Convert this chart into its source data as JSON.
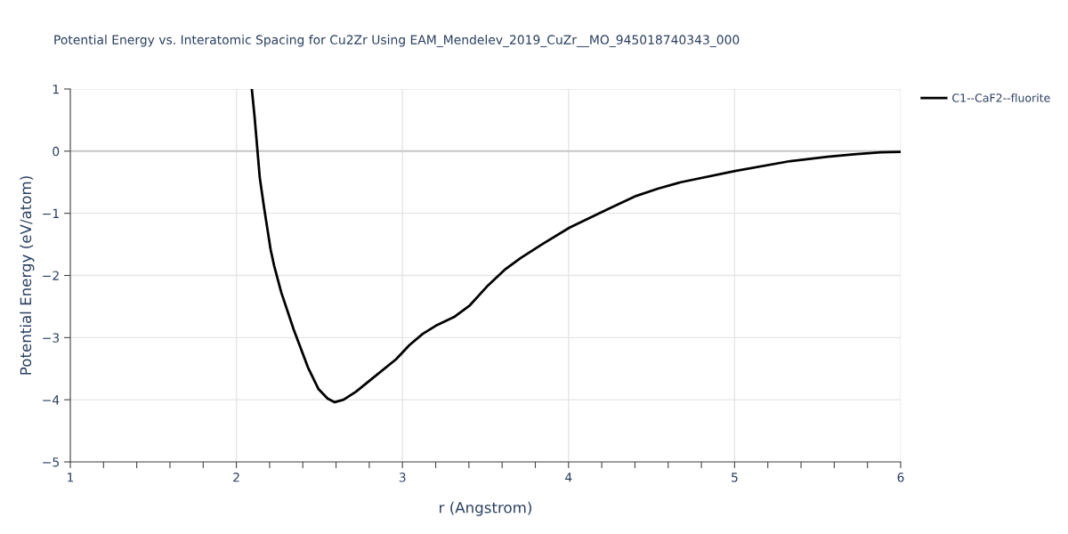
{
  "chart_data": {
    "type": "line",
    "title": "Potential Energy vs. Interatomic Spacing for Cu2Zr Using EAM_Mendelev_2019_CuZr__MO_945018740343_000",
    "xlabel": "r (Angstrom)",
    "ylabel": "Potential Energy (eV/atom)",
    "series": [
      {
        "name": "C1--CaF2--fluorite",
        "color": "#000000",
        "x": [
          2.093,
          2.109,
          2.141,
          2.168,
          2.206,
          2.227,
          2.27,
          2.345,
          2.431,
          2.495,
          2.549,
          2.592,
          2.645,
          2.72,
          2.854,
          2.961,
          3.042,
          3.122,
          3.2,
          3.31,
          3.406,
          3.508,
          3.615,
          3.712,
          3.846,
          4.006,
          4.248,
          4.408,
          4.542,
          4.676,
          5.003,
          5.335,
          5.56,
          5.72,
          5.88,
          6.0
        ],
        "values": [
          1.0,
          0.57,
          -0.43,
          -0.93,
          -1.58,
          -1.84,
          -2.27,
          -2.87,
          -3.48,
          -3.83,
          -3.98,
          -4.04,
          -4.0,
          -3.87,
          -3.58,
          -3.35,
          -3.12,
          -2.94,
          -2.81,
          -2.67,
          -2.48,
          -2.18,
          -1.91,
          -1.72,
          -1.49,
          -1.23,
          -0.92,
          -0.72,
          -0.6,
          -0.5,
          -0.32,
          -0.16,
          -0.09,
          -0.05,
          -0.02,
          -0.01
        ]
      }
    ],
    "xlim": [
      1,
      6
    ],
    "ylim": [
      -5,
      1
    ],
    "xticks": [
      1,
      {
        "value": 1.2,
        "label": null
      },
      {
        "value": 1.4,
        "label": null
      },
      {
        "value": 1.6,
        "label": null
      },
      {
        "value": 1.8,
        "label": null
      },
      2,
      {
        "value": 2.2,
        "label": null
      },
      {
        "value": 2.4,
        "label": null
      },
      {
        "value": 2.6,
        "label": null
      },
      {
        "value": 2.8,
        "label": null
      },
      3,
      {
        "value": 3.2,
        "label": null
      },
      {
        "value": 3.4,
        "label": null
      },
      {
        "value": 3.6,
        "label": null
      },
      {
        "value": 3.8,
        "label": null
      },
      4,
      {
        "value": 4.2,
        "label": null
      },
      {
        "value": 4.4,
        "label": null
      },
      {
        "value": 4.6,
        "label": null
      },
      {
        "value": 4.8,
        "label": null
      },
      5,
      {
        "value": 5.2,
        "label": null
      },
      {
        "value": 5.4,
        "label": null
      },
      {
        "value": 5.6,
        "label": null
      },
      {
        "value": 5.8,
        "label": null
      },
      6
    ],
    "yticks": [
      1,
      0,
      {
        "value": -1,
        "label": "−1"
      },
      {
        "value": -2,
        "label": "−2"
      },
      {
        "value": -3,
        "label": "−3"
      },
      {
        "value": -4,
        "label": "−4"
      },
      {
        "value": -5,
        "label": "−5"
      }
    ],
    "ref_lines": [
      {
        "axis": "y",
        "value": 0,
        "color": "#c8c8c8"
      }
    ],
    "grid": true,
    "legend": "top right",
    "marker": "none",
    "line_style": "solid"
  }
}
